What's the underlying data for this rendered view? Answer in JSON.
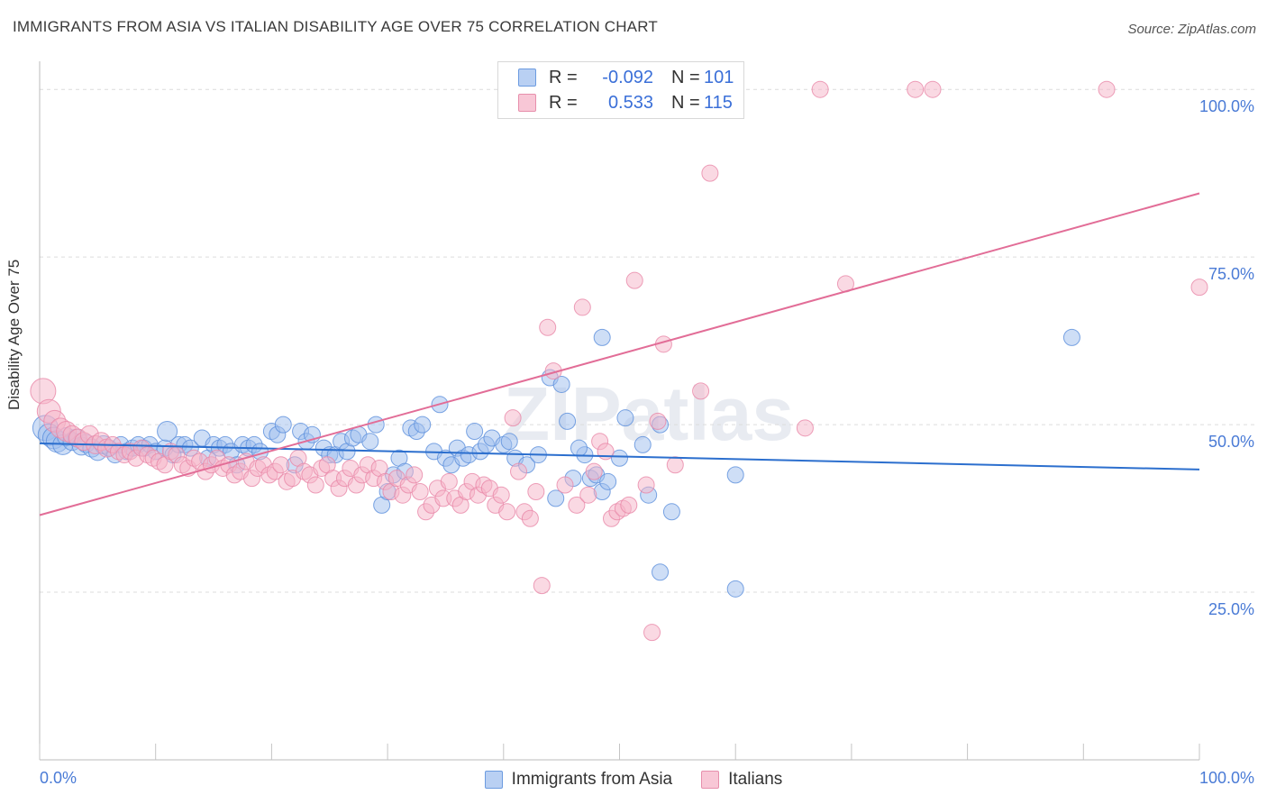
{
  "title": "IMMIGRANTS FROM ASIA VS ITALIAN DISABILITY AGE OVER 75 CORRELATION CHART",
  "source": "Source: ZipAtlas.com",
  "watermark": "ZIPatlas",
  "legend": {
    "rows": [
      {
        "r_label": "R =",
        "r_value": "-0.092",
        "n_label": "N =",
        "n_value": "101",
        "color": "#a9c6f0"
      },
      {
        "r_label": "R =",
        "r_value": "0.533",
        "n_label": "N =",
        "n_value": "115",
        "color": "#f5b8cc"
      }
    ]
  },
  "bottom_legend": [
    {
      "label": "Immigrants from Asia",
      "color": "#a9c6f0"
    },
    {
      "label": "Italians",
      "color": "#f5b8cc"
    }
  ],
  "colors": {
    "blue_fill": "#9dbdee",
    "blue_stroke": "#5b8fdc",
    "blue_line": "#2c6fce",
    "pink_fill": "#f5b3c8",
    "pink_stroke": "#e887a8",
    "pink_line": "#e26d97",
    "tick_text": "#4a7bd6"
  },
  "chart_data": {
    "type": "scatter",
    "xlabel": "",
    "ylabel": "Disability Age Over 75",
    "xlim": [
      0,
      100
    ],
    "ylim": [
      0,
      105
    ],
    "x_tick_labels": [
      "0.0%",
      "100.0%"
    ],
    "y_ticks": [
      25,
      50,
      75,
      100
    ],
    "y_tick_labels": [
      "25.0%",
      "50.0%",
      "75.0%",
      "100.0%"
    ],
    "grid": "horizontal dashed",
    "series": [
      {
        "name": "Immigrants from Asia",
        "trend": {
          "x0": 0,
          "y0": 47.2,
          "x1": 100,
          "y1": 43.3
        },
        "points": [
          [
            0.5,
            49.5,
            14
          ],
          [
            0.8,
            48.5,
            12
          ],
          [
            1.2,
            48.0,
            12
          ],
          [
            1.5,
            47.5,
            12
          ],
          [
            2.0,
            47.0,
            11
          ],
          [
            2.3,
            48.2,
            10
          ],
          [
            2.8,
            47.5,
            10
          ],
          [
            3.2,
            48.0,
            10
          ],
          [
            3.6,
            46.8,
            10
          ],
          [
            4.0,
            47.2,
            10
          ],
          [
            4.5,
            46.5,
            10
          ],
          [
            5.0,
            46.0,
            10
          ],
          [
            5.5,
            47.0,
            10
          ],
          [
            6.0,
            46.5,
            9
          ],
          [
            6.5,
            45.5,
            9
          ],
          [
            7.0,
            47.0,
            9
          ],
          [
            7.5,
            46.0,
            9
          ],
          [
            8.0,
            46.5,
            9
          ],
          [
            8.5,
            47.0,
            9
          ],
          [
            9.0,
            46.5,
            9
          ],
          [
            9.5,
            47.0,
            9
          ],
          [
            10.0,
            46.0,
            9
          ],
          [
            10.8,
            46.5,
            9
          ],
          [
            11.0,
            49.0,
            11
          ],
          [
            11.5,
            45.5,
            9
          ],
          [
            12.0,
            47.0,
            9
          ],
          [
            12.5,
            47.0,
            9
          ],
          [
            13.0,
            46.5,
            9
          ],
          [
            14.0,
            48.0,
            9
          ],
          [
            14.5,
            45.0,
            9
          ],
          [
            15.0,
            47.0,
            9
          ],
          [
            15.5,
            46.5,
            9
          ],
          [
            16.0,
            47.0,
            9
          ],
          [
            16.5,
            46.0,
            9
          ],
          [
            17.0,
            44.0,
            9
          ],
          [
            17.5,
            47.0,
            9
          ],
          [
            18.0,
            46.5,
            9
          ],
          [
            18.5,
            47.0,
            9
          ],
          [
            19.0,
            46.0,
            9
          ],
          [
            20.0,
            49.0,
            9
          ],
          [
            20.5,
            48.5,
            9
          ],
          [
            21.0,
            50.0,
            9
          ],
          [
            22.0,
            44.0,
            9
          ],
          [
            22.5,
            49.0,
            9
          ],
          [
            23.0,
            47.5,
            9
          ],
          [
            23.5,
            48.5,
            9
          ],
          [
            24.5,
            46.5,
            9
          ],
          [
            25.0,
            45.5,
            9
          ],
          [
            25.5,
            45.5,
            9
          ],
          [
            26.0,
            47.5,
            9
          ],
          [
            26.5,
            46.0,
            9
          ],
          [
            27.0,
            48.0,
            9
          ],
          [
            27.5,
            48.5,
            9
          ],
          [
            28.5,
            47.5,
            9
          ],
          [
            29.0,
            50.0,
            9
          ],
          [
            29.5,
            38.0,
            9
          ],
          [
            30.0,
            40.0,
            9
          ],
          [
            30.5,
            42.5,
            9
          ],
          [
            31.0,
            45.0,
            9
          ],
          [
            31.5,
            43.0,
            9
          ],
          [
            32.0,
            49.5,
            9
          ],
          [
            32.5,
            49.0,
            9
          ],
          [
            33.0,
            50.0,
            9
          ],
          [
            34.0,
            46.0,
            9
          ],
          [
            34.5,
            53.0,
            9
          ],
          [
            35.0,
            45.0,
            9
          ],
          [
            35.5,
            44.0,
            9
          ],
          [
            36.0,
            46.5,
            9
          ],
          [
            36.5,
            45.0,
            9
          ],
          [
            37.0,
            45.5,
            9
          ],
          [
            37.5,
            49.0,
            9
          ],
          [
            38.0,
            46.0,
            9
          ],
          [
            38.5,
            47.0,
            9
          ],
          [
            39.0,
            48.0,
            9
          ],
          [
            40.0,
            47.0,
            9
          ],
          [
            40.5,
            47.5,
            9
          ],
          [
            41.0,
            45.0,
            9
          ],
          [
            42.0,
            44.0,
            9
          ],
          [
            43.0,
            45.5,
            9
          ],
          [
            44.0,
            57.0,
            9
          ],
          [
            45.0,
            56.0,
            9
          ],
          [
            46.0,
            42.0,
            9
          ],
          [
            47.0,
            45.5,
            9
          ],
          [
            47.5,
            42.0,
            9
          ],
          [
            48.0,
            42.5,
            9
          ],
          [
            48.5,
            40.0,
            9
          ],
          [
            49.0,
            41.5,
            9
          ],
          [
            50.0,
            45.0,
            9
          ],
          [
            45.5,
            50.5,
            9
          ],
          [
            46.5,
            46.5,
            9
          ],
          [
            44.5,
            39.0,
            9
          ],
          [
            48.5,
            63.0,
            9
          ],
          [
            50.5,
            51.0,
            9
          ],
          [
            52.0,
            47.0,
            9
          ],
          [
            52.5,
            39.5,
            9
          ],
          [
            53.5,
            50.0,
            9
          ],
          [
            53.5,
            28.0,
            9
          ],
          [
            54.5,
            37.0,
            9
          ],
          [
            60.0,
            42.5,
            9
          ],
          [
            60.0,
            25.5,
            9
          ],
          [
            89.0,
            63.0,
            9
          ]
        ]
      },
      {
        "name": "Italians",
        "trend": {
          "x0": 0,
          "y0": 36.5,
          "x1": 100,
          "y1": 84.5
        },
        "points": [
          [
            0.3,
            55.0,
            14
          ],
          [
            0.8,
            52.0,
            13
          ],
          [
            1.3,
            50.5,
            12
          ],
          [
            1.8,
            49.5,
            11
          ],
          [
            2.3,
            49.0,
            11
          ],
          [
            2.8,
            48.5,
            10
          ],
          [
            3.3,
            48.0,
            10
          ],
          [
            3.8,
            47.5,
            10
          ],
          [
            4.3,
            48.5,
            10
          ],
          [
            4.8,
            47.0,
            10
          ],
          [
            5.3,
            47.5,
            10
          ],
          [
            5.8,
            46.5,
            10
          ],
          [
            6.3,
            47.0,
            9
          ],
          [
            6.8,
            46.0,
            9
          ],
          [
            7.3,
            45.5,
            9
          ],
          [
            7.8,
            46.0,
            9
          ],
          [
            8.3,
            45.0,
            9
          ],
          [
            8.8,
            46.5,
            9
          ],
          [
            9.3,
            45.5,
            9
          ],
          [
            9.8,
            45.0,
            9
          ],
          [
            10.3,
            44.5,
            9
          ],
          [
            10.8,
            44.0,
            9
          ],
          [
            11.3,
            46.0,
            9
          ],
          [
            11.8,
            45.5,
            9
          ],
          [
            12.3,
            44.0,
            9
          ],
          [
            12.8,
            43.5,
            9
          ],
          [
            13.3,
            45.0,
            9
          ],
          [
            13.8,
            44.5,
            9
          ],
          [
            14.3,
            43.0,
            9
          ],
          [
            14.8,
            44.0,
            9
          ],
          [
            15.3,
            45.0,
            9
          ],
          [
            15.8,
            43.5,
            9
          ],
          [
            16.3,
            44.0,
            9
          ],
          [
            16.8,
            42.5,
            9
          ],
          [
            17.3,
            43.0,
            9
          ],
          [
            17.8,
            44.5,
            9
          ],
          [
            18.3,
            42.0,
            9
          ],
          [
            18.8,
            43.5,
            9
          ],
          [
            19.3,
            44.0,
            9
          ],
          [
            19.8,
            42.5,
            9
          ],
          [
            20.3,
            43.0,
            9
          ],
          [
            20.8,
            44.0,
            9
          ],
          [
            21.3,
            41.5,
            9
          ],
          [
            21.8,
            42.0,
            9
          ],
          [
            22.3,
            45.0,
            9
          ],
          [
            22.8,
            43.0,
            9
          ],
          [
            23.3,
            42.5,
            9
          ],
          [
            23.8,
            41.0,
            9
          ],
          [
            24.3,
            43.5,
            9
          ],
          [
            24.8,
            44.0,
            9
          ],
          [
            25.3,
            42.0,
            9
          ],
          [
            25.8,
            40.5,
            9
          ],
          [
            26.3,
            42.0,
            9
          ],
          [
            26.8,
            43.5,
            9
          ],
          [
            27.3,
            41.0,
            9
          ],
          [
            27.8,
            42.5,
            9
          ],
          [
            28.3,
            44.0,
            9
          ],
          [
            28.8,
            42.0,
            9
          ],
          [
            29.3,
            43.5,
            9
          ],
          [
            29.8,
            41.5,
            9
          ],
          [
            30.3,
            40.0,
            9
          ],
          [
            30.8,
            42.0,
            9
          ],
          [
            31.3,
            39.5,
            9
          ],
          [
            31.8,
            41.0,
            9
          ],
          [
            32.3,
            42.5,
            9
          ],
          [
            32.8,
            40.0,
            9
          ],
          [
            33.3,
            37.0,
            9
          ],
          [
            33.8,
            38.0,
            9
          ],
          [
            34.3,
            40.5,
            9
          ],
          [
            34.8,
            39.0,
            9
          ],
          [
            35.3,
            41.5,
            9
          ],
          [
            35.8,
            39.0,
            9
          ],
          [
            36.3,
            38.0,
            9
          ],
          [
            36.8,
            40.0,
            9
          ],
          [
            37.3,
            41.5,
            9
          ],
          [
            37.8,
            39.5,
            9
          ],
          [
            38.3,
            41.0,
            9
          ],
          [
            38.8,
            40.5,
            9
          ],
          [
            39.3,
            38.0,
            9
          ],
          [
            39.8,
            39.5,
            9
          ],
          [
            40.3,
            37.0,
            9
          ],
          [
            40.8,
            51.0,
            9
          ],
          [
            41.3,
            43.0,
            9
          ],
          [
            41.8,
            37.0,
            9
          ],
          [
            42.3,
            36.0,
            9
          ],
          [
            42.8,
            40.0,
            9
          ],
          [
            43.3,
            26.0,
            9
          ],
          [
            43.8,
            64.5,
            9
          ],
          [
            44.3,
            58.0,
            9
          ],
          [
            45.3,
            41.0,
            9
          ],
          [
            46.3,
            38.0,
            9
          ],
          [
            46.8,
            67.5,
            9
          ],
          [
            47.3,
            39.5,
            9
          ],
          [
            47.8,
            43.0,
            9
          ],
          [
            48.3,
            47.5,
            9
          ],
          [
            48.8,
            46.0,
            9
          ],
          [
            49.3,
            36.0,
            9
          ],
          [
            49.8,
            37.0,
            9
          ],
          [
            50.3,
            37.5,
            9
          ],
          [
            50.8,
            38.0,
            9
          ],
          [
            51.3,
            71.5,
            9
          ],
          [
            52.3,
            41.0,
            9
          ],
          [
            52.8,
            19.0,
            9
          ],
          [
            53.3,
            50.5,
            9
          ],
          [
            53.8,
            62.0,
            9
          ],
          [
            54.8,
            44.0,
            9
          ],
          [
            57.0,
            55.0,
            9
          ],
          [
            57.8,
            87.5,
            9
          ],
          [
            66.0,
            49.5,
            9
          ],
          [
            69.5,
            71.0,
            9
          ],
          [
            67.3,
            100.0,
            9
          ],
          [
            75.5,
            100.0,
            9
          ],
          [
            77.0,
            100.0,
            9
          ],
          [
            92.0,
            100.0,
            9
          ],
          [
            100.0,
            70.5,
            9
          ]
        ]
      }
    ]
  }
}
